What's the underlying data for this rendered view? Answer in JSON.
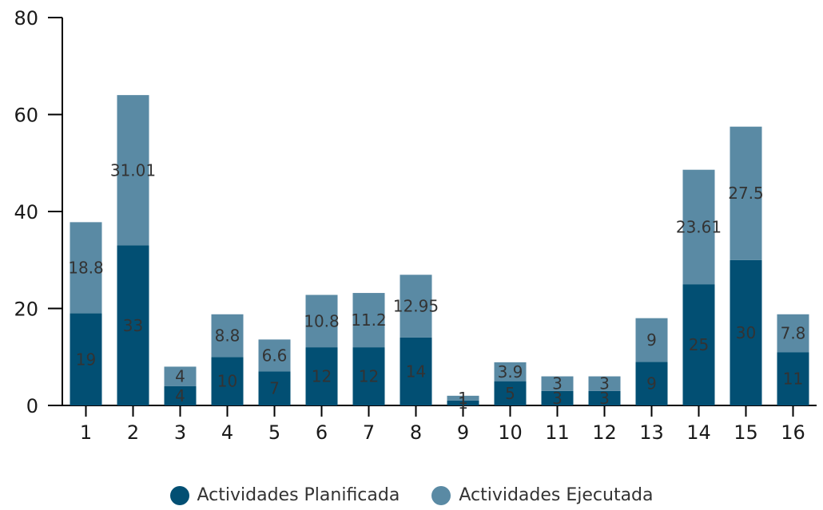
{
  "chart_data": {
    "type": "bar",
    "stacked": true,
    "categories": [
      "1",
      "2",
      "3",
      "4",
      "5",
      "6",
      "7",
      "8",
      "9",
      "10",
      "11",
      "12",
      "13",
      "14",
      "15",
      "16"
    ],
    "series": [
      {
        "name": "Actividades Planificada",
        "color": "#024f73",
        "values": [
          19,
          33,
          4,
          10,
          7,
          12,
          12,
          14,
          1,
          5,
          3,
          3,
          9,
          25,
          30,
          11
        ]
      },
      {
        "name": "Actividades Ejecutada",
        "color": "#5a8aa4",
        "values": [
          18.8,
          31.01,
          4,
          8.8,
          6.6,
          10.8,
          11.2,
          12.95,
          1,
          3.9,
          3,
          3,
          9,
          23.61,
          27.5,
          7.8
        ]
      }
    ],
    "ylim": [
      0,
      80
    ],
    "yticks": [
      0,
      20,
      40,
      60,
      80
    ],
    "grid": false,
    "legend_position": "bottom-center",
    "data_labels": true
  }
}
